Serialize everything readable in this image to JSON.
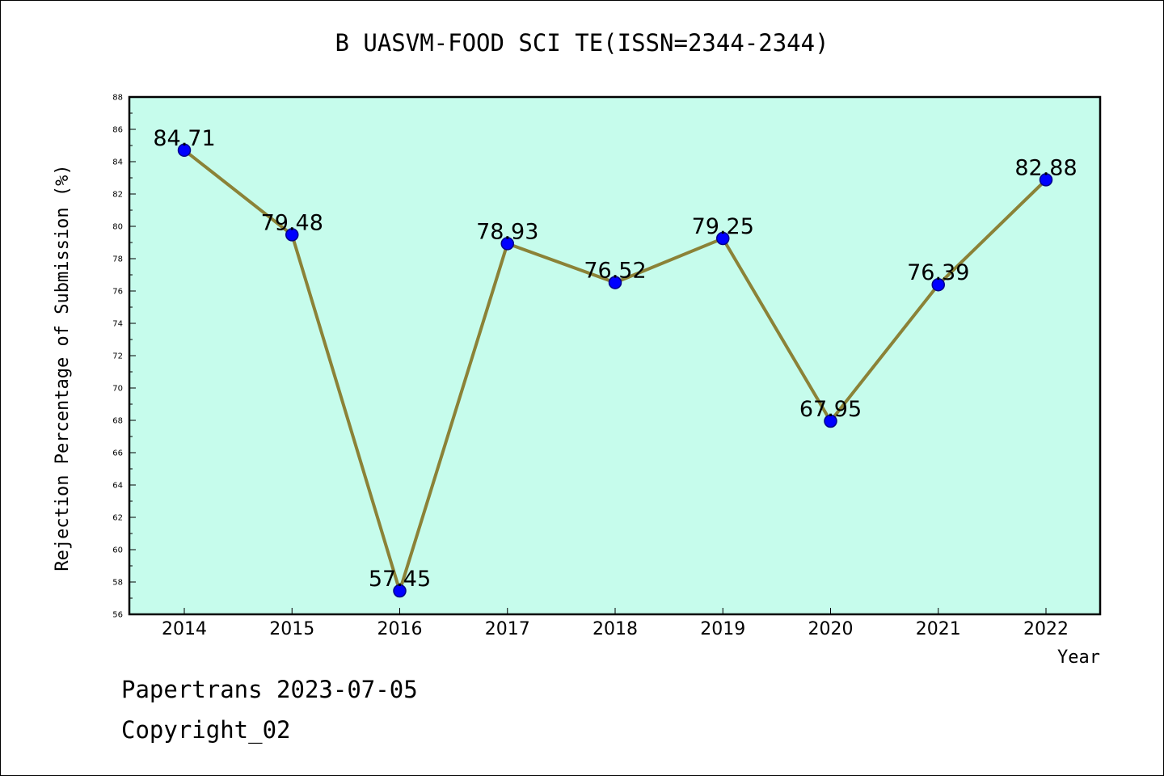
{
  "chart_data": {
    "type": "line",
    "title": "B UASVM-FOOD SCI TE(ISSN=2344-2344)",
    "xlabel": "Year",
    "ylabel": "Rejection Percentage of Submission (%)",
    "categories": [
      "2014",
      "2015",
      "2016",
      "2017",
      "2018",
      "2019",
      "2020",
      "2021",
      "2022"
    ],
    "values": [
      84.71,
      79.48,
      57.45,
      78.93,
      76.52,
      79.25,
      67.95,
      76.39,
      82.88
    ],
    "data_labels": [
      "84.71",
      "79.48",
      "57.45",
      "78.93",
      "76.52",
      "79.25",
      "67.95",
      "76.39",
      "82.88"
    ],
    "ylim": [
      56,
      88
    ],
    "yticks": [
      56,
      58,
      60,
      62,
      64,
      66,
      68,
      70,
      72,
      74,
      76,
      78,
      80,
      82,
      84,
      86,
      88
    ],
    "grid": false,
    "legend": "none",
    "colors": {
      "plot_background": "#c6fcec",
      "line": "#8b8237",
      "marker": "#0000ff",
      "marker_edge": "#00008b",
      "axes": "#000000"
    }
  },
  "footer": {
    "line1": "Papertrans 2023-07-05",
    "line2": "Copyright_02"
  }
}
